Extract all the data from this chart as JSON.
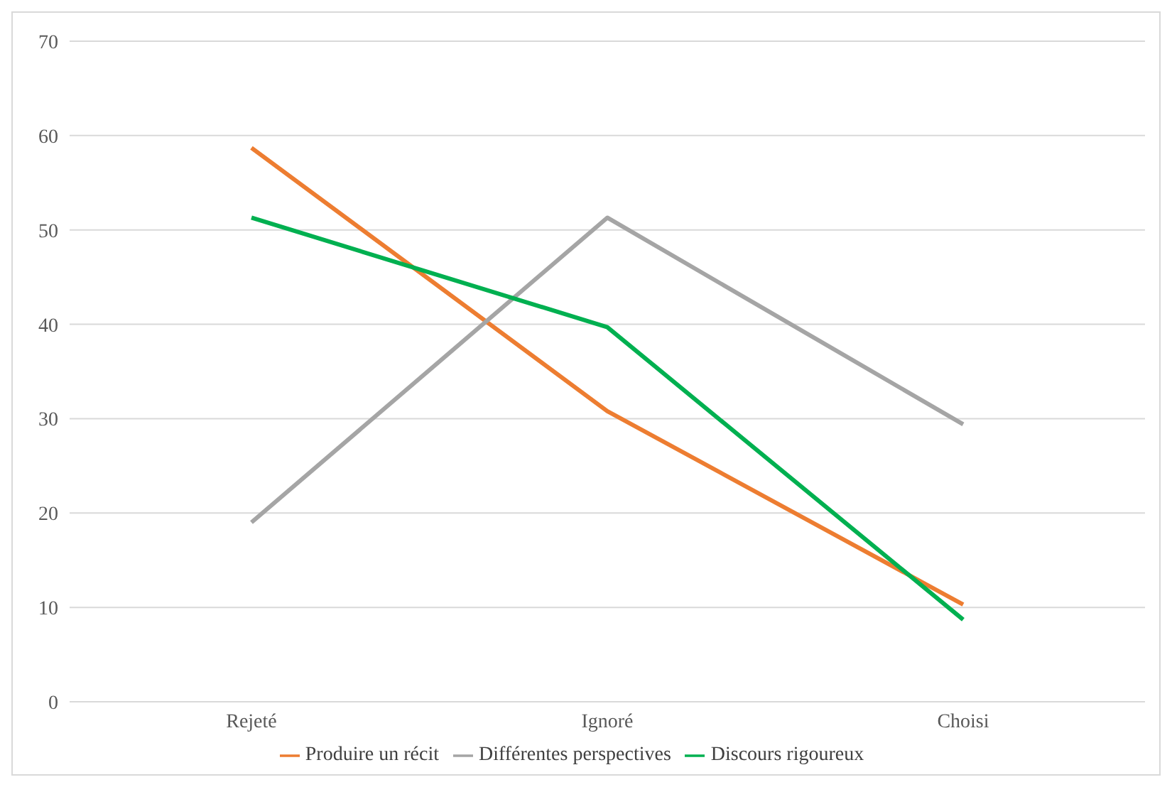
{
  "chart_data": {
    "type": "line",
    "categories": [
      "Rejeté",
      "Ignoré",
      "Choisi"
    ],
    "series": [
      {
        "name": "Produire un récit",
        "color": "#ed7d31",
        "values": [
          58.7,
          30.8,
          10.3
        ]
      },
      {
        "name": "Différentes perspectives",
        "color": "#a5a5a5",
        "values": [
          19.0,
          51.3,
          29.4
        ]
      },
      {
        "name": "Discours rigoureux",
        "color": "#00b050",
        "values": [
          51.3,
          39.7,
          8.7
        ]
      }
    ],
    "ylim": [
      0,
      70
    ],
    "yticks": [
      0,
      10,
      20,
      30,
      40,
      50,
      60,
      70
    ],
    "grid": "y",
    "legend": "bottom",
    "marker": "none",
    "line_style": "solid"
  }
}
